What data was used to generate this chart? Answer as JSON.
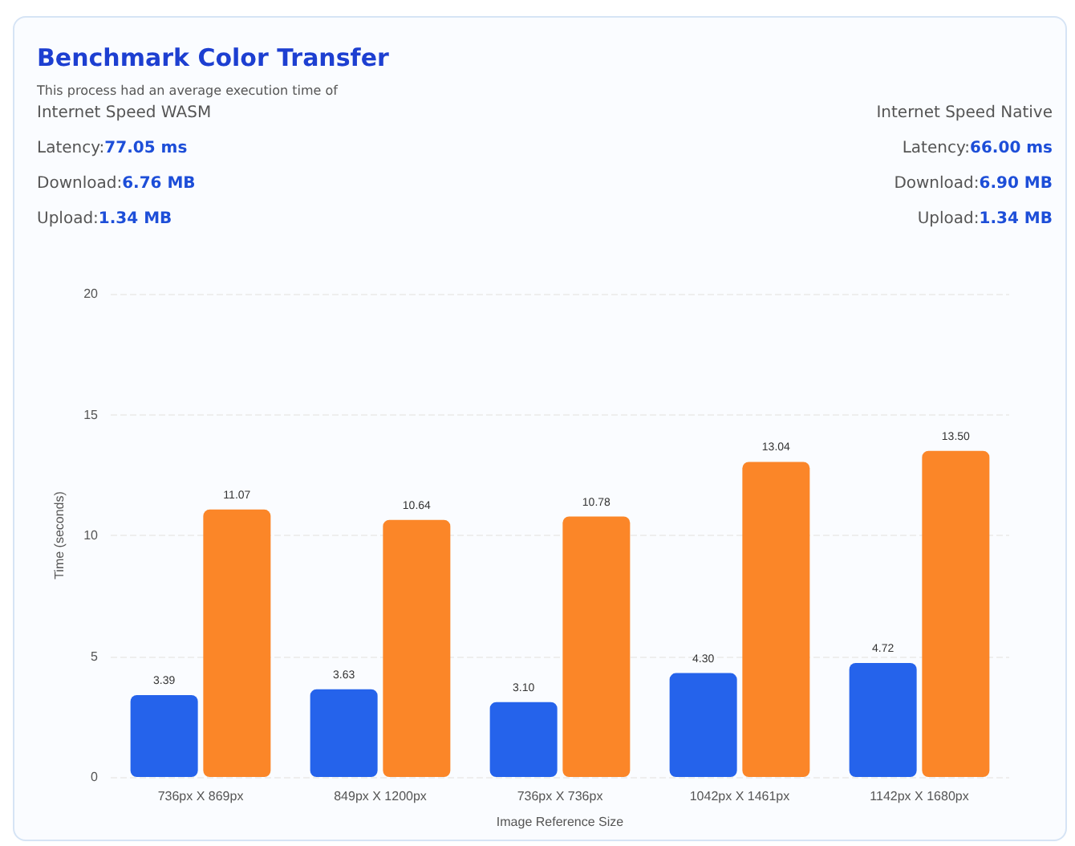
{
  "chart_data": {
    "type": "bar",
    "title": "Benchmark Color Transfer",
    "subtitle": "This process had an average execution time of",
    "annotations": [
      "Internet Speed WASM",
      "Latency:77.05 ms",
      "Download:6.76 MB",
      "Upload:1.34 MB",
      "Internet Speed Native",
      "Latency:66.00 ms",
      "Download:6.90 MB",
      "Upload:1.34 MB"
    ],
    "xlabel": "Image Reference Size",
    "ylabel": "Time (seconds)",
    "categories": [
      "736px X 869px",
      "849px X 1200px",
      "736px X 736px",
      "1042px X 1461px",
      "1142px X 1680px"
    ],
    "series": [
      {
        "color": "#2563eb",
        "values": [
          3.39,
          3.63,
          3.1,
          4.3,
          4.72
        ],
        "value_labels": [
          "3.39",
          "3.63",
          "3.10",
          "4.30",
          "4.72"
        ]
      },
      {
        "color": "#fb8628",
        "values": [
          11.07,
          10.64,
          10.78,
          13.04,
          13.5
        ],
        "value_labels": [
          "11.07",
          "10.64",
          "10.78",
          "13.04",
          "13.50"
        ]
      }
    ],
    "ylim": [
      0,
      20
    ],
    "yticks": [
      0,
      5,
      10,
      15,
      20
    ],
    "grid": "y"
  }
}
